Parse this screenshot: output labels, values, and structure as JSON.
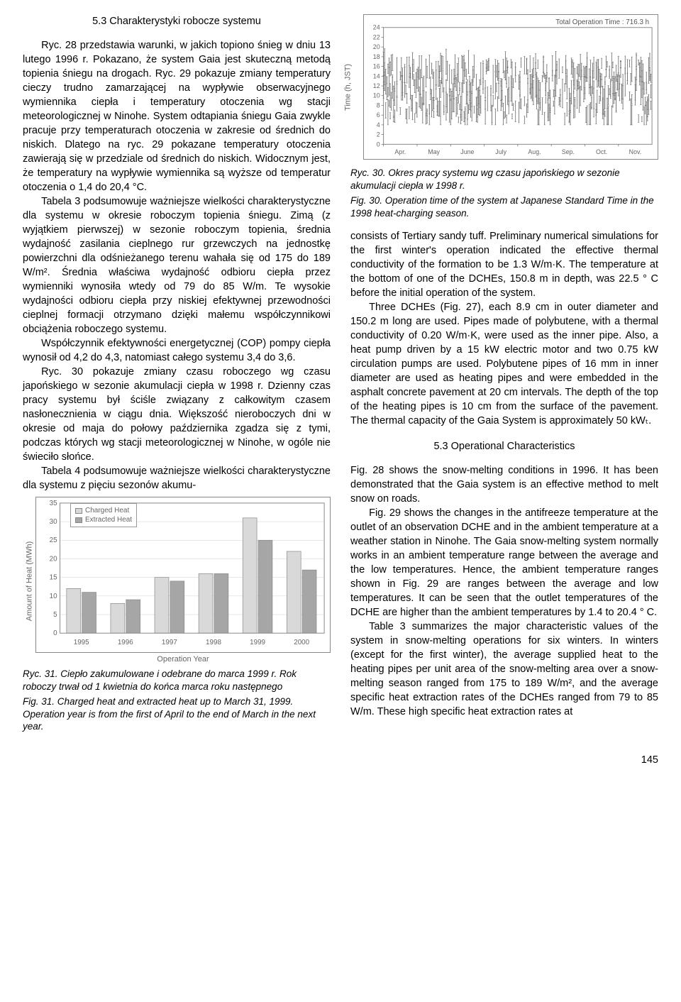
{
  "left": {
    "heading": "5.3 Charakterystyki robocze systemu",
    "p1": "Ryc. 28 przedstawia warunki, w jakich topiono śnieg w dniu 13 lutego 1996 r. Pokazano, że system Gaia jest skuteczną metodą topienia śniegu na drogach. Ryc. 29 pokazuje zmiany temperatury cieczy trudno zamarzającej na wypływie obserwacyjnego wymiennika ciepła i temperatury otoczenia wg stacji meteorologicznej w Ninohe. System odtapiania śniegu Gaia zwykle pracuje przy temperaturach otoczenia w zakresie od średnich do niskich. Dlatego na ryc. 29 pokazane temperatury otoczenia zawierają się w przedziale od średnich do niskich. Widocznym jest, że temperatury na wypływie wymiennika są wyższe od temperatur otoczenia o 1,4 do 20,4 °C.",
    "p2": "Tabela 3 podsumowuje ważniejsze wielkości charakterystyczne dla systemu w okresie roboczym topienia śniegu. Zimą (z wyjątkiem pierwszej) w sezonie roboczym topienia, średnia wydajność zasilania cieplnego rur grzewczych na jednostkę powierzchni dla odśnieżanego terenu wahała się od 175 do 189 W/m². Średnia właściwa wydajność odbioru ciepła przez wymienniki wynosiła wtedy od 79 do 85 W/m. Te wysokie wydajności odbioru ciepła przy niskiej efektywnej przewodności cieplnej formacji otrzymano dzięki małemu współczynnikowi obciążenia roboczego systemu.",
    "p3": "Współczynnik efektywności energetycznej (COP) pompy ciepła wynosił od 4,2 do 4,3, natomiast całego systemu 3,4 do 3,6.",
    "p4": "Ryc. 30 pokazuje zmiany czasu roboczego wg czasu japońskiego w sezonie akumulacji ciepła w 1998 r. Dzienny czas pracy systemu był ściśle związany z całkowitym czasem nasłonecznienia w ciągu dnia. Większość nieroboczych dni w okresie od maja do połowy października zgadza się z tymi, podczas których wg stacji meteorologicznej w Ninohe, w ogóle nie świeciło słońce.",
    "p5": "Tabela 4 podsumowuje ważniejsze wielkości charakterystyczne dla systemu z pięciu sezonów akumu-",
    "fig31_caption_pl": "Ryc. 31. Ciepło zakumulowane i odebrane do marca 1999 r. Rok roboczy trwał od 1 kwietnia do końca marca roku następnego",
    "fig31_caption_en": "Fig. 31. Charged heat and extracted heat up to March 31, 1999. Operation year is from the first of April to the end of March in the next year."
  },
  "right": {
    "fig30_caption_pl": "Ryc. 30. Okres pracy systemu wg czasu japońskiego w sezonie akumulacji ciepła w 1998 r.",
    "fig30_caption_en": "Fig. 30. Operation time of the system at Japanese Standard Time in the 1998 heat-charging season.",
    "p1": "consists of Tertiary sandy tuff. Preliminary numerical simulations for the first winter's operation indicated the effective thermal conductivity of the formation to be 1.3 W/m·K. The temperature at the bottom of one of the DCHEs, 150.8 m in depth, was 22.5 ° C before the initial operation of the system.",
    "p2": "Three DCHEs (Fig. 27), each 8.9 cm in outer diameter and 150.2 m long are used. Pipes made of polybutene, with a  thermal conductivity of 0.20 W/m·K, were used as the inner pipe. Also, a heat pump driven by a 15 kW electric motor and two 0.75 kW circulation pumps are used. Polybutene pipes of 16 mm in inner diameter are used as heating pipes and were embedded in the asphalt concrete pavement at 20 cm intervals. The depth of the top of the heating pipes is 10 cm from the surface of the pavement. The thermal capacity of the Gaia System is approximately 50 kWₜ.",
    "heading": "5.3 Operational Characteristics",
    "p3": "Fig. 28 shows the snow-melting conditions in 1996. It has been demonstrated that the Gaia system is an effective method to melt snow on roads.",
    "p4": "Fig. 29 shows the changes in the antifreeze temperature at the outlet of an observation DCHE and in the ambient temperature at a weather station in Ninohe. The Gaia snow-melting system normally works in an ambient temperature range between the average and the low temperatures. Hence, the ambient temperature ranges shown in Fig. 29 are ranges between the average and low temperatures. It can be seen that the outlet temperatures of the DCHE are higher than the ambient temperatures by 1.4 to 20.4 ° C.",
    "p5": "Table 3 summarizes the major characteristic values of the system in snow-melting operations for six winters. In winters (except for the first winter), the average supplied heat to the heating pipes per unit area of the snow-melting area over a snow-melting season ranged from 175 to 189 W/m², and the average specific heat extraction rates of the DCHEs ranged from 79 to 85 W/m. These high specific heat extraction rates at"
  },
  "page_number": "145",
  "chart30": {
    "type": "scatter-timeline",
    "title_right": "Total Operation Time : 716.3 h",
    "xlabel_months": [
      "Apr.",
      "May",
      "June",
      "July",
      "Aug.",
      "Sep.",
      "Oct.",
      "Nov."
    ],
    "ylabel": "Time (h, JST)",
    "ylim": [
      0,
      24
    ],
    "ytick_step": 2,
    "background": "#ffffff",
    "grid_color": "#bfbfbf",
    "marker_color": "#666666",
    "frame_color": "#888888",
    "title_fontsize": 10
  },
  "chart31": {
    "type": "bar",
    "legend": [
      "Charged Heat",
      "Extracted Heat"
    ],
    "years": [
      "1995",
      "1996",
      "1997",
      "1998",
      "1999",
      "2000"
    ],
    "charged": [
      12,
      8,
      15,
      16,
      31,
      22
    ],
    "extracted": [
      11,
      9,
      14,
      16,
      25,
      17
    ],
    "ylim": [
      0,
      35
    ],
    "ytick_step": 5,
    "ylabel": "Amount of Heat (MWh)",
    "xlabel": "Operation Year",
    "bar_colors": {
      "charged": "#d9d9d9",
      "extracted": "#a6a6a6"
    },
    "bar_border": "#888888",
    "grid_color": "#d0d0d0",
    "frame_color": "#888888",
    "legend_fontsize": 10,
    "axis_fontsize": 11
  }
}
